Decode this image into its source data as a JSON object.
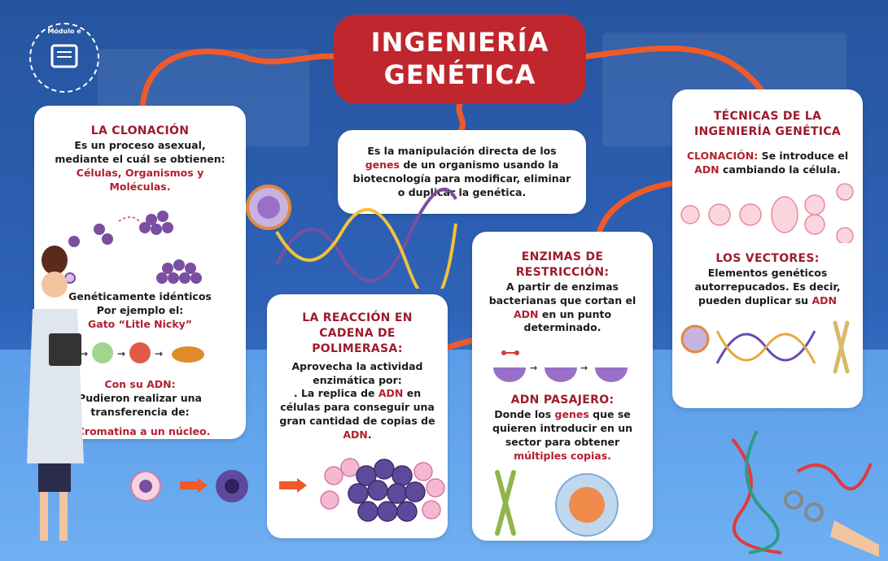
{
  "logo": {
    "text": "Módulo e"
  },
  "title": {
    "line1": "INGENIERÍA",
    "line2": "GENÉTICA"
  },
  "definition": {
    "pre": "Es la manipulación directa de los",
    "genes": "genes",
    "post": "de un organismo usando la biotecnología para modificar, eliminar o duplicar la genética."
  },
  "cloning": {
    "heading": "LA CLONACIÓN",
    "intro": "Es un proceso asexual, mediante el cuál se obtienen:",
    "items": "Células, Organismos y Moléculas.",
    "identical": "Genéticamente idénticos",
    "example_pre": "Por ejemplo el:",
    "example": "Gato “Litle Nicky”",
    "dna_heading": "Con su ADN:",
    "dna_text": "Pudieron realizar una transferencia de:",
    "dna_item": ". Cromatina a un núcleo."
  },
  "pcr": {
    "heading": "LA REACCIÓN EN CADENA DE POLIMERASA:",
    "intro": "Aprovecha la actividad enzimática por:",
    "t1": ". La replica de",
    "adn1": "ADN",
    "t2": "en células para conseguir una gran cantidad de copias de",
    "adn2": "ADN",
    "t3": "."
  },
  "enzymes": {
    "heading": "ENZIMAS DE RESTRICCIÓN:",
    "t1": "A partir de enzimas bacterianas que cortan el",
    "adn": "ADN",
    "t2": "en un punto determinado."
  },
  "passenger": {
    "heading": "ADN PASAJERO:",
    "t1": "Donde los",
    "genes": "genes",
    "t2": "que se quieren introducir en un sector para obtener",
    "copies": "múltiples copias."
  },
  "techniques": {
    "heading": "TÉCNICAS DE LA INGENIERÍA GENÉTICA",
    "clon_label": "CLONACIÓN:",
    "clon_t1": "Se introduce el",
    "clon_adn": "ADN",
    "clon_t2": "cambiando la célula.",
    "vec_heading": "LOS VECTORES:",
    "vec_t1": "Elementos genéticos autorrepucados. Es decir, pueden duplicar su",
    "vec_adn": "ADN"
  },
  "colors": {
    "accent": "#c0262d",
    "heading": "#9c1c2c",
    "rope": "#f05a28",
    "background": "#2f63b8"
  }
}
